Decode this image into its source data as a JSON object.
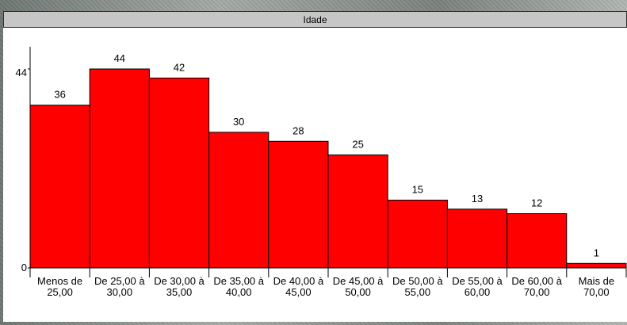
{
  "window_title": "Idade",
  "chart_data": {
    "type": "bar",
    "title": "Idade",
    "categories": [
      [
        "Menos de",
        "25,00"
      ],
      [
        "De 25,00 à",
        "30,00"
      ],
      [
        "De 30,00 à",
        "35,00"
      ],
      [
        "De 35,00 à",
        "40,00"
      ],
      [
        "De 40,00 à",
        "45,00"
      ],
      [
        "De 45,00 à",
        "50,00"
      ],
      [
        "De 50,00 à",
        "55,00"
      ],
      [
        "De 55,00 à",
        "60,00"
      ],
      [
        "De 60,00 à",
        "70,00"
      ],
      [
        "Mais de",
        "70,00"
      ]
    ],
    "values": [
      36,
      44,
      42,
      30,
      28,
      25,
      15,
      13,
      12,
      1
    ],
    "ylim": [
      0,
      44
    ],
    "yticks": [
      0,
      44
    ],
    "bar_color": "#ff0000",
    "grid": false,
    "legend": "none"
  }
}
